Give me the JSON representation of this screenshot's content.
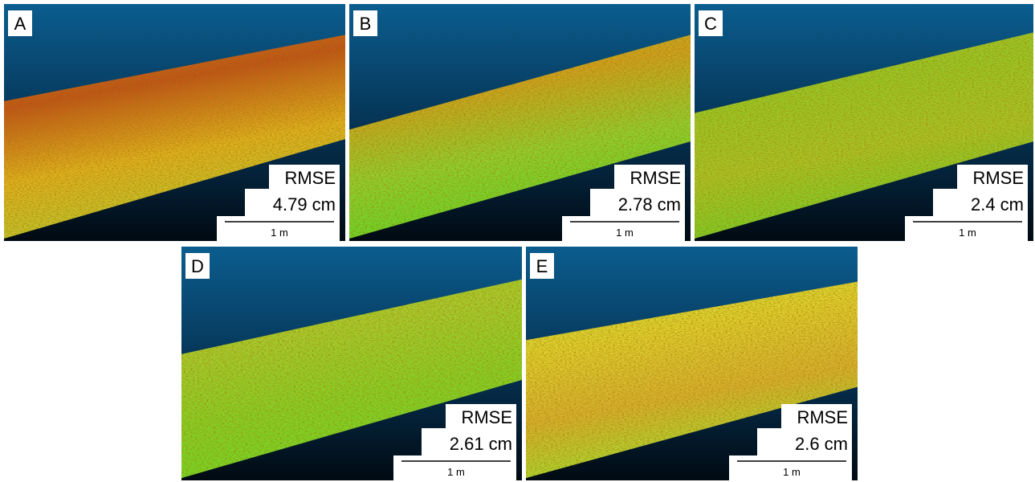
{
  "panels": [
    {
      "label": "A",
      "metric": "RMSE",
      "value": "4.79 cm",
      "scale": "1 m"
    },
    {
      "label": "B",
      "metric": "RMSE",
      "value": "2.78 cm",
      "scale": "1 m"
    },
    {
      "label": "C",
      "metric": "RMSE",
      "value": "2.4 cm",
      "scale": "1 m"
    },
    {
      "label": "D",
      "metric": "RMSE",
      "value": "2.61 cm",
      "scale": "1 m"
    },
    {
      "label": "E",
      "metric": "RMSE",
      "value": "2.6 cm",
      "scale": "1 m"
    }
  ]
}
